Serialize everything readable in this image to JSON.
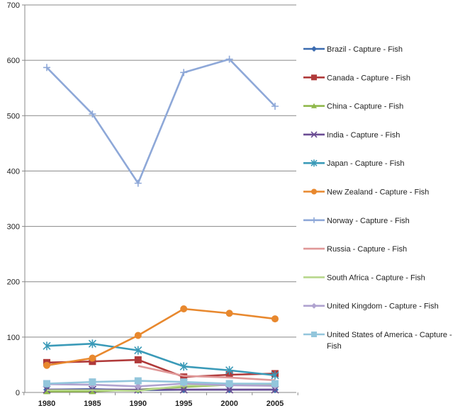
{
  "chart_data": {
    "type": "line",
    "title": "",
    "xlabel": "",
    "ylabel": "",
    "x": [
      "1980",
      "1985",
      "1990",
      "1995",
      "2000",
      "2005"
    ],
    "ylim": [
      0,
      700
    ],
    "yticks": [
      0,
      100,
      200,
      300,
      400,
      500,
      600,
      700
    ],
    "grid": "horizontal",
    "legend_position": "right",
    "series": [
      {
        "name": "Brazil - Capture - Fish",
        "color": "#3B6BB0",
        "marker": "diamond",
        "values": [
          5,
          6,
          4,
          5,
          5,
          5
        ]
      },
      {
        "name": "Canada - Capture - Fish",
        "color": "#B03A3A",
        "marker": "square",
        "values": [
          54,
          56,
          59,
          28,
          32,
          34
        ]
      },
      {
        "name": "China - Capture - Fish",
        "color": "#8FB84B",
        "marker": "triangle",
        "values": [
          2,
          2,
          5,
          10,
          14,
          14
        ]
      },
      {
        "name": "India - Capture - Fish",
        "color": "#6A4C93",
        "marker": "x",
        "values": [
          5,
          5,
          5,
          5,
          5,
          5
        ]
      },
      {
        "name": "Japan - Capture - Fish",
        "color": "#3A9AB8",
        "marker": "asterisk",
        "values": [
          84,
          88,
          76,
          47,
          40,
          31
        ]
      },
      {
        "name": "New Zealand - Capture - Fish",
        "color": "#E8882E",
        "marker": "circle",
        "values": [
          49,
          62,
          103,
          151,
          143,
          133
        ]
      },
      {
        "name": "Norway - Capture - Fish",
        "color": "#8EA8D8",
        "marker": "plus",
        "values": [
          587,
          503,
          378,
          578,
          602,
          517
        ]
      },
      {
        "name": "Russia - Capture - Fish",
        "color": "#E09898",
        "marker": "none",
        "values": [
          null,
          null,
          48,
          30,
          27,
          22
        ]
      },
      {
        "name": "South Africa - Capture - Fish",
        "color": "#B7D78C",
        "marker": "none",
        "values": [
          4,
          4,
          3,
          12,
          14,
          16
        ]
      },
      {
        "name": "United Kingdom - Capture - Fish",
        "color": "#B0A3D0",
        "marker": "diamond",
        "values": [
          15,
          14,
          11,
          16,
          13,
          12
        ]
      },
      {
        "name": "United States of America - Capture - Fish",
        "color": "#93C6DC",
        "marker": "square",
        "values": [
          16,
          19,
          21,
          19,
          16,
          16
        ]
      }
    ]
  }
}
